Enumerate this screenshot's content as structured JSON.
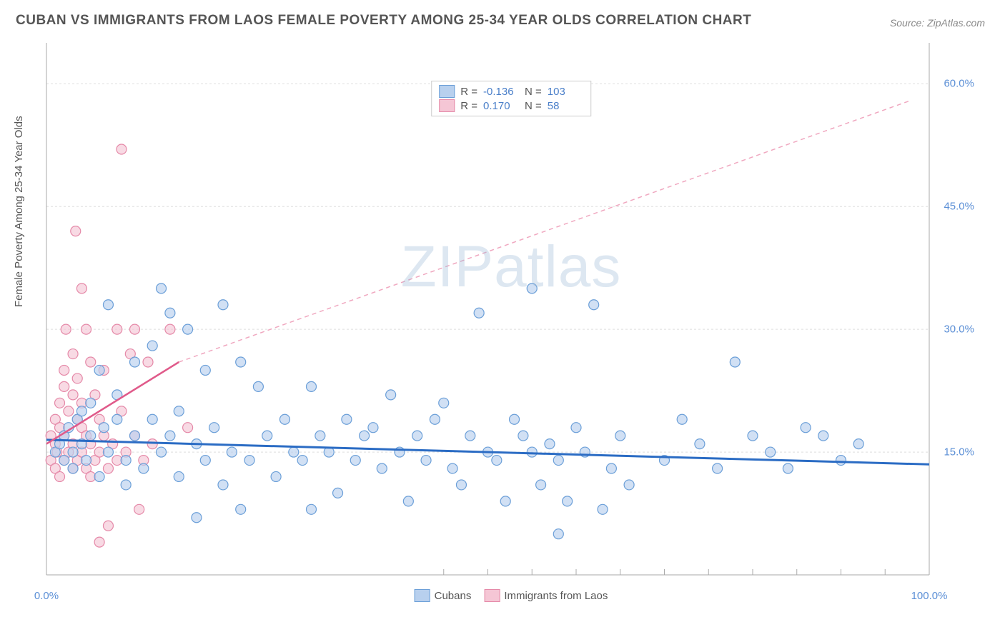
{
  "title": "CUBAN VS IMMIGRANTS FROM LAOS FEMALE POVERTY AMONG 25-34 YEAR OLDS CORRELATION CHART",
  "source": "Source: ZipAtlas.com",
  "watermark": "ZIPatlas",
  "y_axis_label": "Female Poverty Among 25-34 Year Olds",
  "chart": {
    "type": "scatter",
    "xlim": [
      0,
      100
    ],
    "ylim": [
      0,
      65
    ],
    "x_ticks": [
      0,
      100
    ],
    "x_tick_labels": [
      "0.0%",
      "100.0%"
    ],
    "x_minor_ticks": [
      45,
      50,
      55,
      60,
      65,
      70,
      75,
      80,
      85,
      90,
      95
    ],
    "y_ticks": [
      15,
      30,
      45,
      60
    ],
    "y_tick_labels": [
      "15.0%",
      "30.0%",
      "45.0%",
      "60.0%"
    ],
    "grid_color": "#dddddd",
    "axis_color": "#aaaaaa",
    "background_color": "#ffffff",
    "marker_radius": 7,
    "marker_stroke_width": 1.2,
    "series": [
      {
        "name": "Cubans",
        "fill_color": "#b8d0ee",
        "stroke_color": "#6b9fd8",
        "fill_opacity": 0.65,
        "R": "-0.136",
        "N": "103",
        "trend": {
          "x1": 0,
          "y1": 16.5,
          "x2": 100,
          "y2": 13.5,
          "color": "#2b6cc4",
          "width": 3,
          "dash": "none"
        },
        "points": [
          [
            1,
            15
          ],
          [
            1.5,
            16
          ],
          [
            2,
            17
          ],
          [
            2,
            14
          ],
          [
            2.5,
            18
          ],
          [
            3,
            15
          ],
          [
            3,
            13
          ],
          [
            3.5,
            19
          ],
          [
            4,
            20
          ],
          [
            4,
            16
          ],
          [
            4.5,
            14
          ],
          [
            5,
            17
          ],
          [
            5,
            21
          ],
          [
            6,
            12
          ],
          [
            6,
            25
          ],
          [
            6.5,
            18
          ],
          [
            7,
            33
          ],
          [
            7,
            15
          ],
          [
            8,
            19
          ],
          [
            8,
            22
          ],
          [
            9,
            11
          ],
          [
            9,
            14
          ],
          [
            10,
            26
          ],
          [
            10,
            17
          ],
          [
            11,
            13
          ],
          [
            12,
            28
          ],
          [
            12,
            19
          ],
          [
            13,
            15
          ],
          [
            13,
            35
          ],
          [
            14,
            32
          ],
          [
            14,
            17
          ],
          [
            15,
            12
          ],
          [
            15,
            20
          ],
          [
            16,
            30
          ],
          [
            17,
            16
          ],
          [
            17,
            7
          ],
          [
            18,
            14
          ],
          [
            18,
            25
          ],
          [
            19,
            18
          ],
          [
            20,
            33
          ],
          [
            20,
            11
          ],
          [
            21,
            15
          ],
          [
            22,
            26
          ],
          [
            22,
            8
          ],
          [
            23,
            14
          ],
          [
            24,
            23
          ],
          [
            25,
            17
          ],
          [
            26,
            12
          ],
          [
            27,
            19
          ],
          [
            28,
            15
          ],
          [
            29,
            14
          ],
          [
            30,
            23
          ],
          [
            30,
            8
          ],
          [
            31,
            17
          ],
          [
            32,
            15
          ],
          [
            33,
            10
          ],
          [
            34,
            19
          ],
          [
            35,
            14
          ],
          [
            36,
            17
          ],
          [
            37,
            18
          ],
          [
            38,
            13
          ],
          [
            39,
            22
          ],
          [
            40,
            15
          ],
          [
            41,
            9
          ],
          [
            42,
            17
          ],
          [
            43,
            14
          ],
          [
            44,
            19
          ],
          [
            45,
            21
          ],
          [
            46,
            13
          ],
          [
            47,
            11
          ],
          [
            48,
            17
          ],
          [
            49,
            32
          ],
          [
            50,
            15
          ],
          [
            51,
            14
          ],
          [
            52,
            9
          ],
          [
            53,
            19
          ],
          [
            54,
            17
          ],
          [
            55,
            15
          ],
          [
            55,
            35
          ],
          [
            56,
            11
          ],
          [
            57,
            16
          ],
          [
            58,
            5
          ],
          [
            58,
            14
          ],
          [
            59,
            9
          ],
          [
            60,
            18
          ],
          [
            61,
            15
          ],
          [
            62,
            33
          ],
          [
            63,
            8
          ],
          [
            64,
            13
          ],
          [
            65,
            17
          ],
          [
            66,
            11
          ],
          [
            70,
            14
          ],
          [
            72,
            19
          ],
          [
            74,
            16
          ],
          [
            76,
            13
          ],
          [
            78,
            26
          ],
          [
            80,
            17
          ],
          [
            82,
            15
          ],
          [
            84,
            13
          ],
          [
            86,
            18
          ],
          [
            88,
            17
          ],
          [
            90,
            14
          ],
          [
            92,
            16
          ]
        ]
      },
      {
        "name": "Immigrants from Laos",
        "fill_color": "#f5c6d5",
        "stroke_color": "#e589a8",
        "fill_opacity": 0.65,
        "R": "0.170",
        "N": "58",
        "trend_solid": {
          "x1": 0,
          "y1": 16,
          "x2": 15,
          "y2": 26,
          "color": "#e05a8a",
          "width": 2.5
        },
        "trend_dashed": {
          "x1": 15,
          "y1": 26,
          "x2": 98,
          "y2": 58,
          "color": "#f0a8c0",
          "width": 1.5,
          "dash": "6,5"
        },
        "points": [
          [
            0.5,
            14
          ],
          [
            0.5,
            17
          ],
          [
            1,
            13
          ],
          [
            1,
            16
          ],
          [
            1,
            19
          ],
          [
            1.2,
            15
          ],
          [
            1.5,
            12
          ],
          [
            1.5,
            18
          ],
          [
            1.5,
            21
          ],
          [
            2,
            14
          ],
          [
            2,
            17
          ],
          [
            2,
            23
          ],
          [
            2,
            25
          ],
          [
            2.2,
            30
          ],
          [
            2.5,
            15
          ],
          [
            2.5,
            20
          ],
          [
            3,
            13
          ],
          [
            3,
            16
          ],
          [
            3,
            22
          ],
          [
            3,
            27
          ],
          [
            3.3,
            42
          ],
          [
            3.5,
            14
          ],
          [
            3.5,
            19
          ],
          [
            3.5,
            24
          ],
          [
            4,
            15
          ],
          [
            4,
            18
          ],
          [
            4,
            21
          ],
          [
            4,
            35
          ],
          [
            4.5,
            13
          ],
          [
            4.5,
            17
          ],
          [
            4.5,
            30
          ],
          [
            5,
            12
          ],
          [
            5,
            16
          ],
          [
            5,
            26
          ],
          [
            5.5,
            14
          ],
          [
            5.5,
            22
          ],
          [
            6,
            15
          ],
          [
            6,
            19
          ],
          [
            6,
            4
          ],
          [
            6.5,
            17
          ],
          [
            6.5,
            25
          ],
          [
            7,
            13
          ],
          [
            7,
            6
          ],
          [
            7.5,
            16
          ],
          [
            8,
            30
          ],
          [
            8,
            14
          ],
          [
            8.5,
            20
          ],
          [
            8.5,
            52
          ],
          [
            9,
            15
          ],
          [
            9.5,
            27
          ],
          [
            10,
            17
          ],
          [
            10,
            30
          ],
          [
            10.5,
            8
          ],
          [
            11,
            14
          ],
          [
            11.5,
            26
          ],
          [
            12,
            16
          ],
          [
            14,
            30
          ],
          [
            16,
            18
          ]
        ]
      }
    ]
  },
  "legend_bottom": [
    {
      "label": "Cubans",
      "fill": "#b8d0ee",
      "stroke": "#6b9fd8"
    },
    {
      "label": "Immigrants from Laos",
      "fill": "#f5c6d5",
      "stroke": "#e589a8"
    }
  ]
}
